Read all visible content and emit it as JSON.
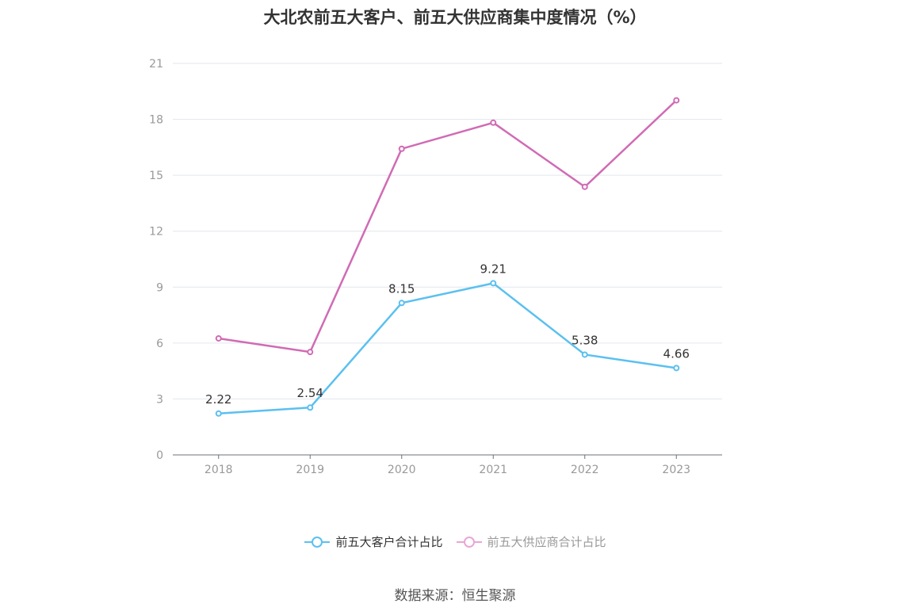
{
  "title": "大北农前五大客户、前五大供应商集中度情况（%）",
  "source": "数据来源：恒生聚源",
  "chart_data": {
    "type": "line",
    "x": [
      "2018",
      "2019",
      "2020",
      "2021",
      "2022",
      "2023"
    ],
    "ylim": [
      0,
      21
    ],
    "yticks": [
      0,
      3,
      6,
      9,
      12,
      15,
      18,
      21
    ],
    "grid": true,
    "legend_position": "bottom",
    "series": [
      {
        "name": "前五大客户合计占比",
        "color": "#5bc0f0",
        "values": [
          2.22,
          2.54,
          8.15,
          9.21,
          5.38,
          4.66
        ],
        "show_labels": true
      },
      {
        "name": "前五大供应商合计占比",
        "color": "#d06bb4",
        "legend_color": "#e8a7d3",
        "values": [
          6.25,
          5.52,
          16.42,
          17.82,
          14.38,
          19.02
        ],
        "show_labels": false
      }
    ]
  }
}
